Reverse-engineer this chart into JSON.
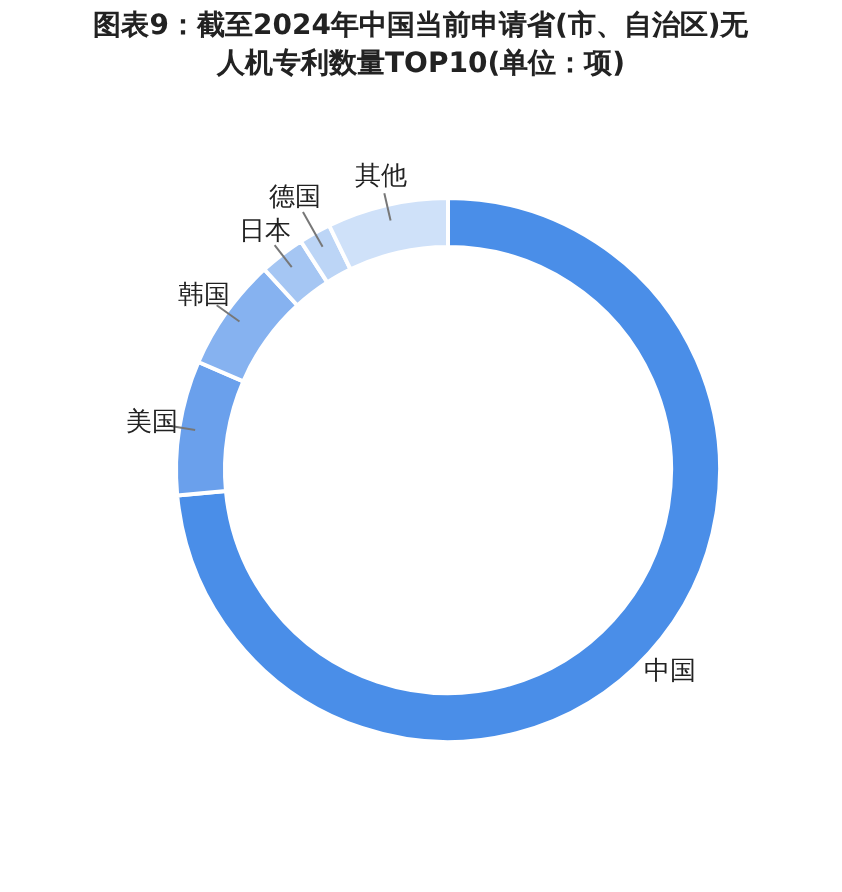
{
  "chart_data": {
    "type": "donut",
    "title": "图表9：截至2024年中国当前申请省(市、自治区)无人机专利数量TOP10(单位：项)",
    "categories": [
      "中国",
      "美国",
      "韩国",
      "日本",
      "德国",
      "其他"
    ],
    "values": [
      73.5,
      8,
      6.7,
      2.7,
      1.9,
      7.2
    ],
    "colors": [
      "#4a8ee8",
      "#6aa0ec",
      "#86b2f0",
      "#a5c6f3",
      "#bcd5f6",
      "#cfe1f9"
    ],
    "legend": false
  }
}
